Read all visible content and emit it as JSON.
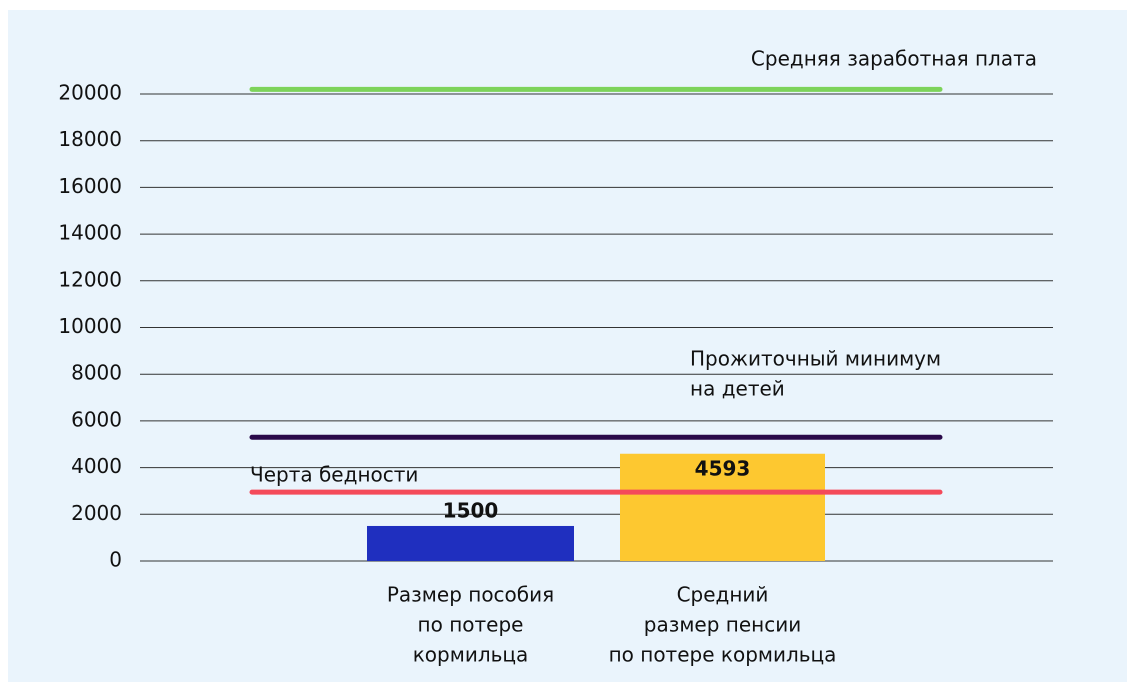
{
  "chart_data": {
    "type": "bar",
    "categories": [
      [
        "Размер пособия",
        "по потере",
        "кормильца"
      ],
      [
        "Средний",
        "размер пенсии",
        "по потере кормильца"
      ]
    ],
    "values": [
      1500,
      4593
    ],
    "colors": [
      "#1f2fbf",
      "#fdc830"
    ],
    "ylim": [
      0,
      20000
    ],
    "yticks": [
      0,
      2000,
      4000,
      6000,
      8000,
      10000,
      12000,
      14000,
      16000,
      18000,
      20000
    ],
    "grid": true,
    "reference_lines": [
      {
        "label": [
          "Средняя заработная плата"
        ],
        "value": 20200,
        "color": "#7dd35a"
      },
      {
        "label": [
          "Прожиточный минимум",
          "на детей"
        ],
        "value": 5300,
        "color": "#2a0a4a"
      },
      {
        "label": [
          "Черта бедности"
        ],
        "value": 2950,
        "color": "#f44a5a"
      }
    ]
  }
}
